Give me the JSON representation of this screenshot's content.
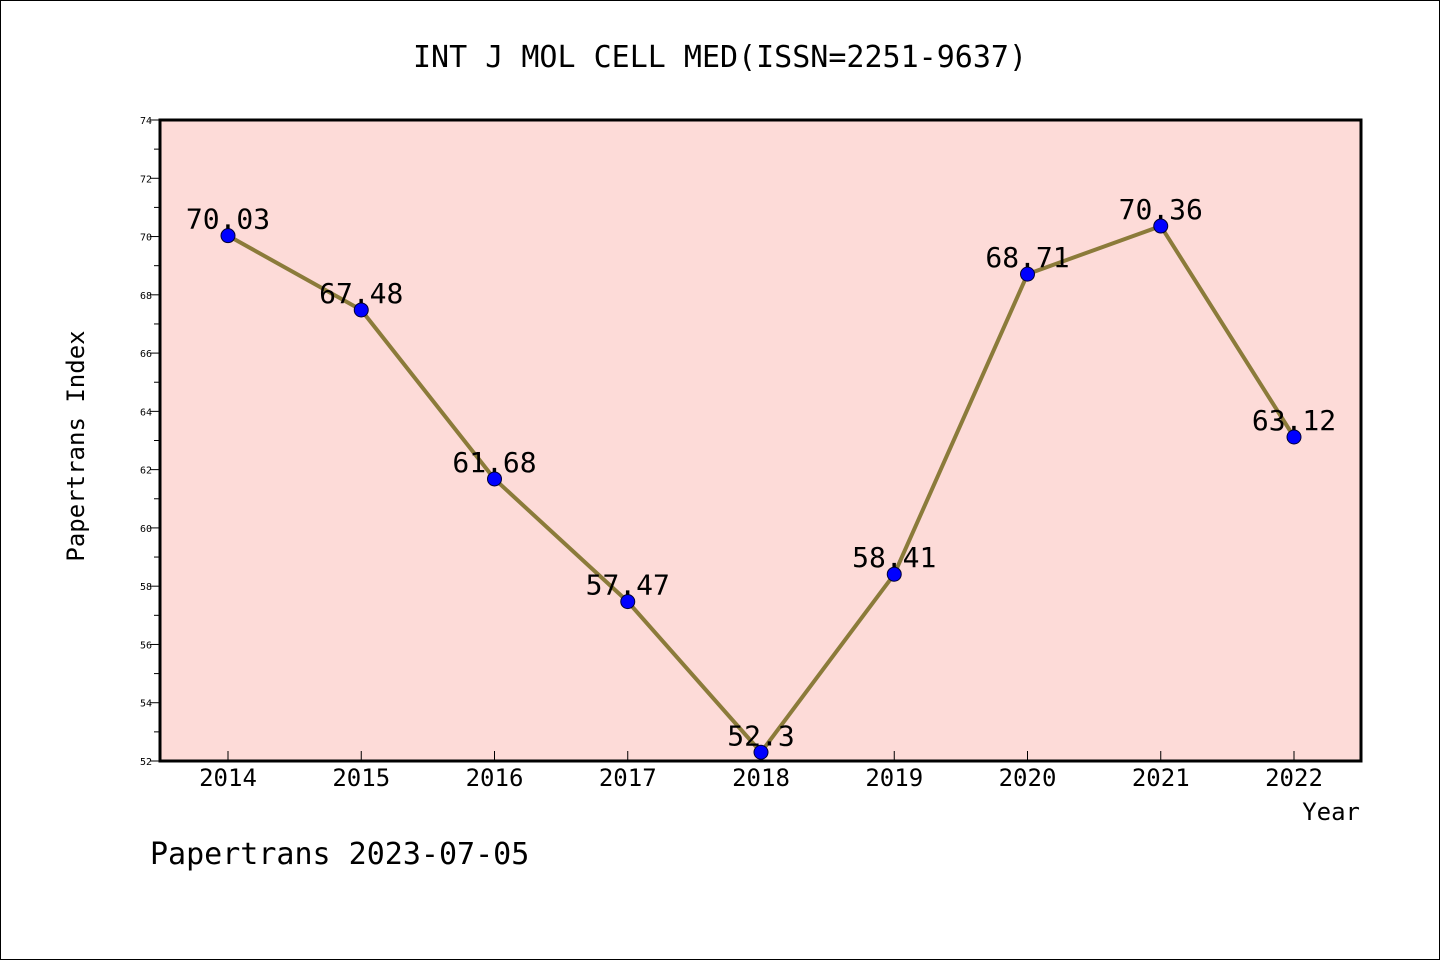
{
  "chart_data": {
    "type": "line",
    "title": "INT J MOL CELL MED(ISSN=2251-9637)",
    "xlabel": "Year",
    "ylabel": "Papertrans Index",
    "categories": [
      "2014",
      "2015",
      "2016",
      "2017",
      "2018",
      "2019",
      "2020",
      "2021",
      "2022"
    ],
    "series": [
      {
        "values": [
          70.03,
          67.48,
          61.68,
          57.47,
          52.3,
          58.41,
          68.71,
          70.36,
          63.12
        ]
      }
    ],
    "data_labels": [
      "70.03",
      "67.48",
      "61.68",
      "57.47",
      "52.3",
      "58.41",
      "68.71",
      "70.36",
      "63.12"
    ],
    "ylim": [
      52,
      74
    ],
    "yticks": [
      "52",
      "54",
      "56",
      "58",
      "60",
      "62",
      "64",
      "66",
      "68",
      "70",
      "72",
      "74"
    ],
    "grid": false,
    "colors": {
      "plot_background": "#fddbd8",
      "line": "#8b7b3a",
      "marker": "#0000ff",
      "axis": "#000000"
    }
  },
  "footer": {
    "text": "Papertrans 2023-07-05"
  }
}
